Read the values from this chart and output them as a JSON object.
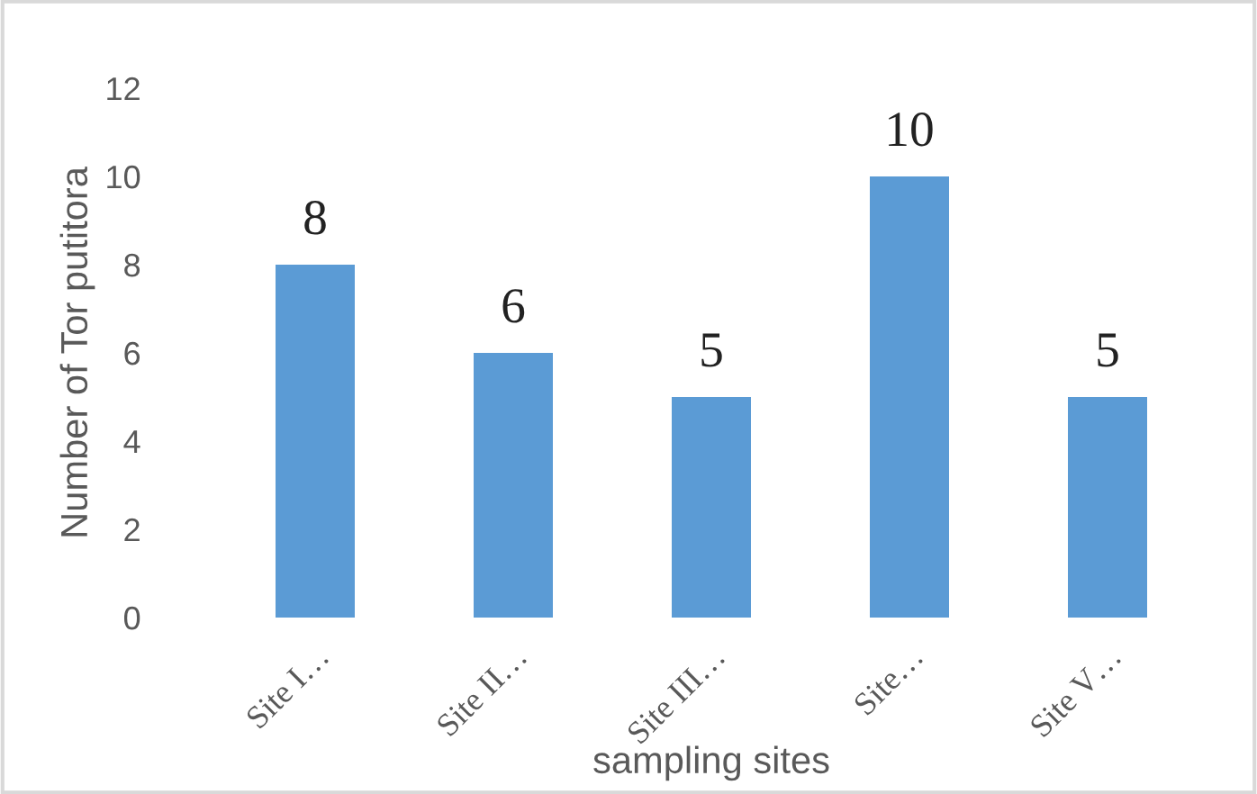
{
  "chart_data": {
    "type": "bar",
    "xlabel": "sampling sites",
    "ylabel": "Number of Tor putitora",
    "categories": [
      "Site I…",
      "Site II…",
      "Site III…",
      "Site…",
      "Site V…"
    ],
    "values": [
      8,
      6,
      5,
      10,
      5
    ],
    "color": "#5b9bd5",
    "ylim": [
      0,
      12
    ],
    "yticks": [
      0,
      2,
      4,
      6,
      8,
      10,
      12
    ],
    "grid": false,
    "data_labels": true
  }
}
